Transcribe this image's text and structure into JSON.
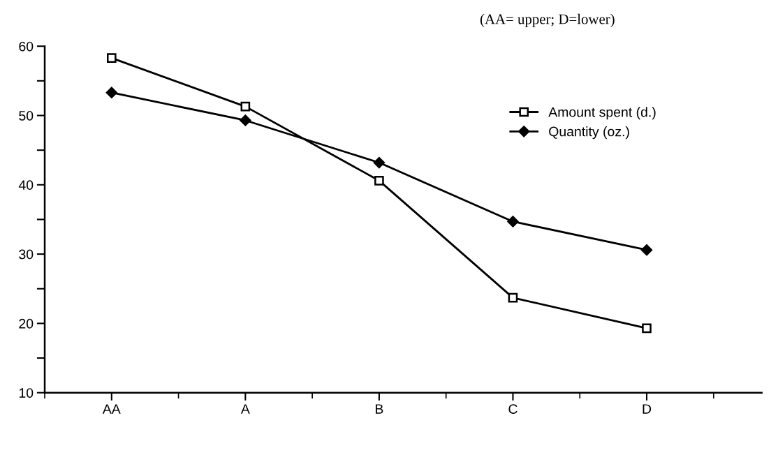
{
  "chart_data": {
    "type": "line",
    "annotations": [
      "(AA= upper; D=lower)"
    ],
    "categories": [
      "AA",
      "A",
      "B",
      "C",
      "D"
    ],
    "series": [
      {
        "name": "Amount spent (d.)",
        "color": "#000000",
        "marker": "square",
        "values": [
          58.3,
          51.3,
          40.6,
          23.7,
          19.3
        ]
      },
      {
        "name": "Quantity (oz.)",
        "color": "#000000",
        "marker": "diamond",
        "values": [
          53.3,
          49.3,
          43.2,
          34.7,
          30.6
        ]
      }
    ],
    "ylim": [
      10,
      60
    ],
    "yticks": [
      10,
      {
        "value": 15,
        "label": null
      },
      20,
      {
        "value": 25,
        "label": null
      },
      30,
      {
        "value": 35,
        "label": null
      },
      40,
      {
        "value": 45,
        "label": null
      },
      50,
      {
        "value": 55,
        "label": null
      },
      60
    ],
    "grid": false,
    "legend": "top right",
    "line_style": "solid"
  }
}
